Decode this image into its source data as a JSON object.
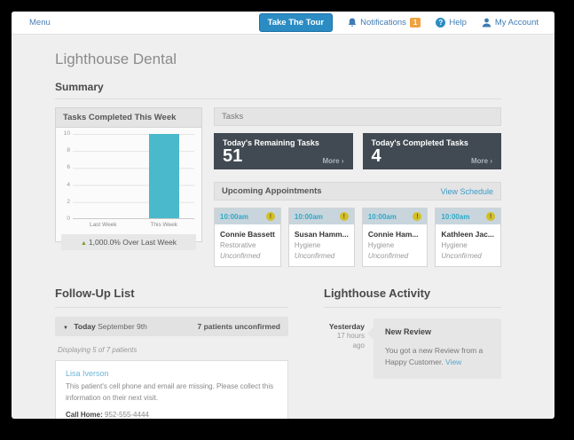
{
  "topbar": {
    "menu_label": "Menu",
    "tour_button": "Take The Tour",
    "notifications_label": "Notifications",
    "notifications_count": "1",
    "help_label": "Help",
    "help_icon_glyph": "?",
    "account_label": "My Account"
  },
  "page": {
    "title": "Lighthouse Dental",
    "summary_heading": "Summary"
  },
  "chart_data": {
    "type": "bar",
    "title": "Tasks Completed This Week",
    "categories": [
      "Last Week",
      "This Week"
    ],
    "values": [
      0,
      10
    ],
    "ylim": [
      0,
      10
    ],
    "yticks": [
      "10",
      "8",
      "6",
      "4",
      "2",
      "0"
    ],
    "grid": true,
    "bar_color": "#4ab9cc",
    "trend_glyph": "▲",
    "footer_note": "1,000.0% Over Last Week"
  },
  "tasks": {
    "heading": "Tasks",
    "cards": [
      {
        "label": "Today's Remaining Tasks",
        "value": "51",
        "more": "More ›"
      },
      {
        "label": "Today's Completed Tasks",
        "value": "4",
        "more": "More ›"
      }
    ]
  },
  "appointments": {
    "heading": "Upcoming Appointments",
    "view_schedule": "View Schedule",
    "warn_glyph": "!",
    "cards": [
      {
        "time": "10:00am",
        "name": "Connie Bassett",
        "type": "Restorative",
        "status": "Unconfirmed"
      },
      {
        "time": "10:00am",
        "name": "Susan Hamm...",
        "type": "Hygiene",
        "status": "Unconfirmed"
      },
      {
        "time": "10:00am",
        "name": "Connie Ham...",
        "type": "Hygiene",
        "status": "Unconfirmed"
      },
      {
        "time": "10:00am",
        "name": "Kathleen Jac...",
        "type": "Hygiene",
        "status": "Unconfirmed"
      }
    ]
  },
  "followup": {
    "heading": "Follow-Up List",
    "collapse_glyph": "▼",
    "group_day": "Today",
    "group_date": "September 9th",
    "group_status": "7 patients unconfirmed",
    "displaying": "Displaying 5 of 7 patients",
    "patient": {
      "name": "Lisa Iverson",
      "note": "This patient's cell phone and email are missing. Please collect this information on their next visit.",
      "call_label": "Call Home:",
      "call_number": "952-555-4444"
    }
  },
  "activity": {
    "heading": "Lighthouse Activity",
    "items": [
      {
        "day": "Yesterday",
        "ago": "17 hours ago",
        "title": "New Review",
        "body": "You got a new Review from a Happy Customer.",
        "link": "View"
      }
    ]
  },
  "colors": {
    "accent_blue": "#2b8cc3",
    "link_blue": "#3a9bc7",
    "bar_teal": "#4ab9cc",
    "dark_panel": "#414a52",
    "warn_yellow": "#d2bf2a",
    "badge_orange": "#efa23d",
    "trend_green": "#7a9a2e"
  }
}
